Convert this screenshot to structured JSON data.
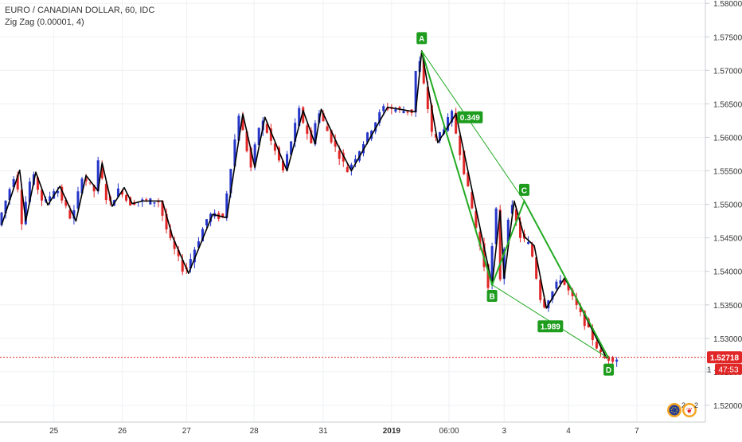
{
  "header": {
    "symbol_line": "EURO / CANADIAN DOLLAR, 60, IDC",
    "indicator_line": "Zig Zag (0.00001, 4)"
  },
  "chart_data": {
    "type": "candlestick",
    "x_ticks": [
      "25",
      "26",
      "27",
      "28",
      "31",
      "2019",
      "06:00",
      "3",
      "4",
      "7"
    ],
    "x_tick_index": [
      13.0,
      30.0,
      46.0,
      62.8,
      80.0,
      97.0,
      111.3,
      125.0,
      141.0,
      158.0
    ],
    "y_ticks": [
      "1.58000",
      "1.57500",
      "1.57000",
      "1.56500",
      "1.56000",
      "1.55500",
      "1.55000",
      "1.54500",
      "1.54000",
      "1.53500",
      "1.53000",
      "1.52500",
      "1.52000"
    ],
    "ylim": [
      1.5175,
      1.5805
    ],
    "last_price": {
      "label": "1.52718",
      "value": 1.52718
    },
    "countdown": "47:53",
    "zigzag": [
      [
        0,
        1.5469
      ],
      [
        4.5,
        1.5551
      ],
      [
        6,
        1.5475
      ],
      [
        8.5,
        1.5548
      ],
      [
        11.5,
        1.5499
      ],
      [
        14.5,
        1.5527
      ],
      [
        18.5,
        1.5475
      ],
      [
        21,
        1.5543
      ],
      [
        24,
        1.552
      ],
      [
        25,
        1.5562
      ],
      [
        27.5,
        1.5497
      ],
      [
        30.5,
        1.5525
      ],
      [
        32.5,
        1.5501
      ],
      [
        35,
        1.5505
      ],
      [
        40,
        1.5505
      ],
      [
        42.5,
        1.5452
      ],
      [
        46.5,
        1.5397
      ],
      [
        52.5,
        1.5485
      ],
      [
        56,
        1.548
      ],
      [
        60,
        1.5635
      ],
      [
        63,
        1.5555
      ],
      [
        65.5,
        1.563
      ],
      [
        71,
        1.555
      ],
      [
        75,
        1.564
      ],
      [
        78,
        1.559
      ],
      [
        79.5,
        1.5642
      ],
      [
        83.5,
        1.559
      ],
      [
        87,
        1.555
      ],
      [
        96,
        1.5645
      ],
      [
        103,
        1.5638
      ],
      [
        104.5,
        1.5729
      ],
      [
        108.5,
        1.5592
      ],
      [
        113,
        1.5635
      ],
      [
        122,
        1.538
      ],
      [
        124,
        1.549
      ],
      [
        125,
        1.539
      ],
      [
        127.5,
        1.5505
      ],
      [
        130,
        1.5452
      ],
      [
        132.5,
        1.5438
      ],
      [
        135.5,
        1.5345
      ],
      [
        140,
        1.539
      ],
      [
        142.5,
        1.5365
      ],
      [
        150.5,
        1.527
      ]
    ],
    "harmonic_pattern": {
      "points": [
        {
          "label": "A",
          "x": 104.5,
          "y": 1.5729
        },
        {
          "label": "B",
          "x": 122.0,
          "y": 1.538
        },
        {
          "label": "C",
          "x": 130.0,
          "y": 1.5505
        },
        {
          "label": "D",
          "x": 151.0,
          "y": 1.527
        }
      ],
      "ratios": [
        {
          "label": "0.349",
          "x": 116.5,
          "y": 1.563
        },
        {
          "label": "1.989",
          "x": 136.5,
          "y": 1.5318
        }
      ]
    },
    "grid": true,
    "badges": [
      {
        "name": "events-badge-eu",
        "count": "2"
      },
      {
        "name": "events-badge-ca",
        "count": "2"
      }
    ],
    "colors": {
      "up": "#2536c9",
      "down": "#e02626",
      "zigzag": "#000000",
      "pattern": "#22aa22",
      "pattern_label": "#1e9c1e",
      "last_price": "#e02626",
      "grid": "#eef0f3"
    }
  }
}
